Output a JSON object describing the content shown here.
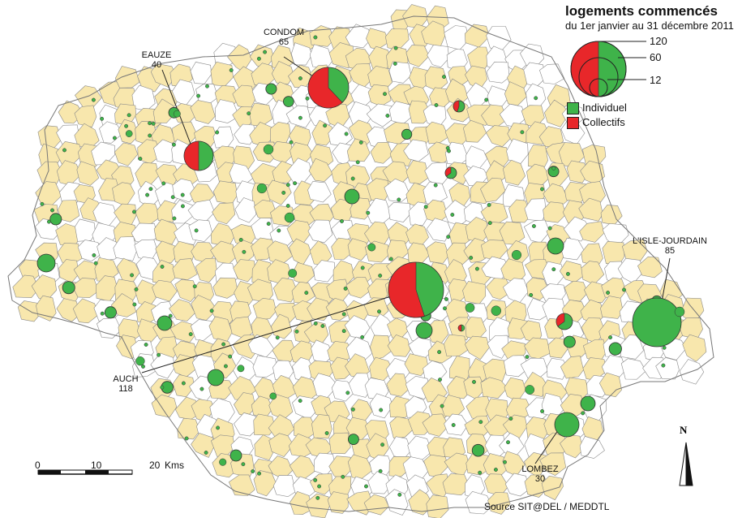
{
  "legend": {
    "title": "logements commencés",
    "subtitle": "du 1er janvier au 31 décembre 2011",
    "size_labels": [
      "120",
      "60",
      "12"
    ],
    "categories": [
      {
        "label": "Individuel",
        "color": "#3fb34a"
      },
      {
        "label": "Collectifs",
        "color": "#e8272a"
      }
    ]
  },
  "towns": [
    {
      "name": "EAUZE",
      "value": "40"
    },
    {
      "name": "CONDOM",
      "value": "65"
    },
    {
      "name": "L'ISLE-JOURDAIN",
      "value": "85"
    },
    {
      "name": "AUCH",
      "value": "118"
    },
    {
      "name": "LOMBEZ",
      "value": "30"
    }
  ],
  "scale": {
    "ticks": [
      "0",
      "10",
      "20"
    ],
    "unit": "Kms"
  },
  "north_label": "N",
  "source": "Source SIT@DEL / MEDDTL",
  "colors": {
    "commune_fill": "#f8e7ad",
    "commune_border": "#8a8a8a",
    "individuel": "#3fb34a",
    "collectifs": "#e8272a"
  }
}
